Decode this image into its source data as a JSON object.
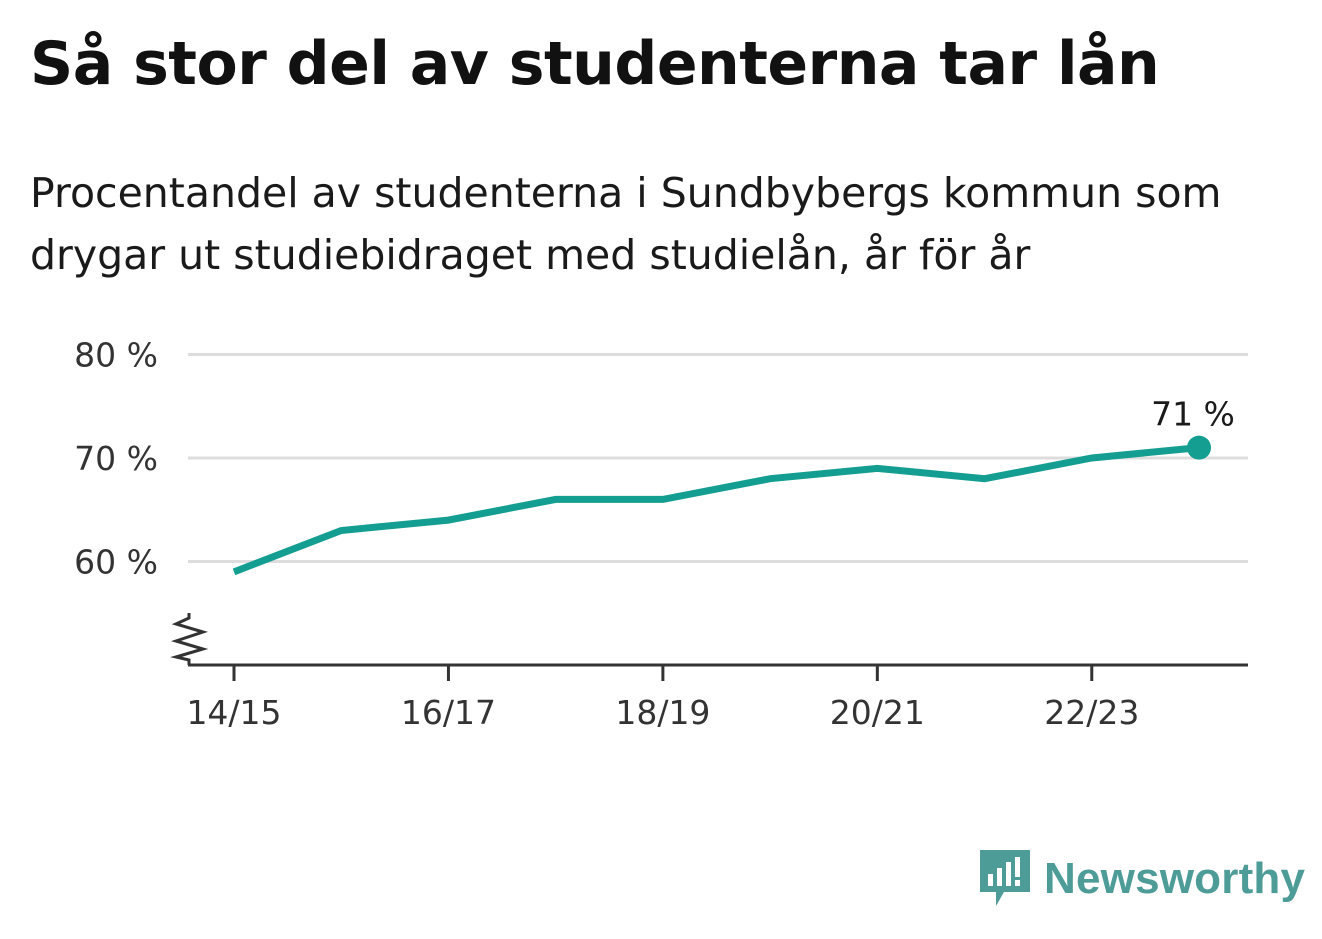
{
  "title": "Så stor del av studenterna tar lån",
  "subtitle": "Procentandel av studenterna i Sundbybergs kommun som drygar ut studiebidraget med studielån, år för år",
  "chart_data": {
    "type": "line",
    "title": "Så stor del av studenterna tar lån",
    "subtitle": "Procentandel av studenterna i Sundbybergs kommun som drygar ut studiebidraget med studielån, år för år",
    "x": [
      "14/15",
      "15/16",
      "16/17",
      "17/18",
      "18/19",
      "19/20",
      "20/21",
      "21/22",
      "22/23",
      "23/24"
    ],
    "x_tick_labels": [
      "14/15",
      "16/17",
      "18/19",
      "20/21",
      "22/23"
    ],
    "series": [
      {
        "values": [
          59,
          63,
          64,
          66,
          66,
          68,
          69,
          68,
          70,
          71
        ],
        "color": "#139e91"
      }
    ],
    "y_ticks": [
      60,
      70,
      80
    ],
    "y_tick_labels": [
      "60 %",
      "70 %",
      "80 %"
    ],
    "ylim": [
      50,
      80
    ],
    "y_axis_break": true,
    "end_label": "71 %",
    "xlabel": "",
    "ylabel": "",
    "grid": true,
    "legend": "none"
  },
  "colors": {
    "line": "#139e91",
    "grid": "#dddddd",
    "axis": "#333333",
    "brand": "#4e9c98"
  },
  "brand": {
    "name": "Newsworthy",
    "icon": "newsworthy-logo-icon"
  }
}
